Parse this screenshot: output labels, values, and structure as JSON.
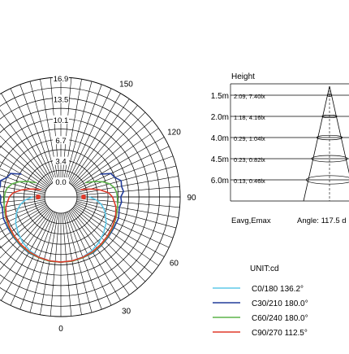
{
  "chart_data": [
    {
      "type": "polar",
      "unit_label": "UNIT:cd",
      "radial_ticks": [
        "16.9",
        "13.5",
        "10.1",
        "6.7",
        "3.4",
        "0.0"
      ],
      "angle_labels": [
        "0",
        "30",
        "60",
        "90",
        "120",
        "150"
      ],
      "radial_max": 16.9,
      "series": [
        {
          "name": "C0/180 136.2°",
          "color": "#5ec8e8",
          "angles": [
            0,
            10,
            20,
            30,
            40,
            50,
            60,
            70,
            75,
            80,
            85,
            90
          ],
          "values": [
            8.0,
            7.95,
            7.8,
            7.5,
            7.05,
            6.5,
            5.9,
            5.1,
            4.6,
            4.0,
            3.2,
            2.0
          ]
        },
        {
          "name": "C30/210 180.0°",
          "color": "#223c9a",
          "angles": [
            0,
            10,
            20,
            30,
            40,
            50,
            60,
            70,
            80,
            85,
            90,
            95,
            100,
            105,
            110,
            115,
            120
          ],
          "values": [
            8.0,
            8.0,
            7.9,
            7.9,
            7.7,
            7.5,
            7.4,
            7.3,
            7.2,
            7.2,
            7.3,
            7.5,
            7.6,
            7.4,
            6.9,
            6.2,
            5.0
          ]
        },
        {
          "name": "C60/240 180.0°",
          "color": "#5db34a",
          "angles": [
            0,
            10,
            20,
            30,
            40,
            50,
            60,
            70,
            80,
            90,
            95,
            100,
            105,
            110,
            115,
            120
          ],
          "values": [
            8.0,
            8.0,
            7.9,
            7.8,
            7.6,
            7.4,
            7.2,
            7.0,
            6.8,
            6.6,
            6.5,
            6.2,
            5.6,
            4.6,
            3.3,
            2.0
          ]
        },
        {
          "name": "C90/270 112.5°",
          "color": "#e03a2a",
          "angles": [
            0,
            10,
            20,
            30,
            40,
            50,
            60,
            70,
            80,
            90,
            95,
            100,
            103,
            106,
            110
          ],
          "values": [
            8.0,
            7.95,
            7.85,
            7.7,
            7.5,
            7.3,
            7.1,
            6.9,
            6.5,
            5.8,
            5.2,
            3.9,
            3.0,
            2.0,
            0.8
          ]
        }
      ]
    },
    {
      "type": "table",
      "title": "Height",
      "heights": [
        "1.5m",
        "2.0m",
        "4.0m",
        "4.5m",
        "6.0m"
      ],
      "values": [
        "2.09,  7.40lx",
        "1.18,  4.16lx",
        "0.29,  1.04lx",
        "0.23,  0.82lx",
        "0.13,  0.46lx"
      ],
      "footer_left": "Eavg,Emax",
      "footer_right": "Angle: 117.5 d"
    }
  ]
}
